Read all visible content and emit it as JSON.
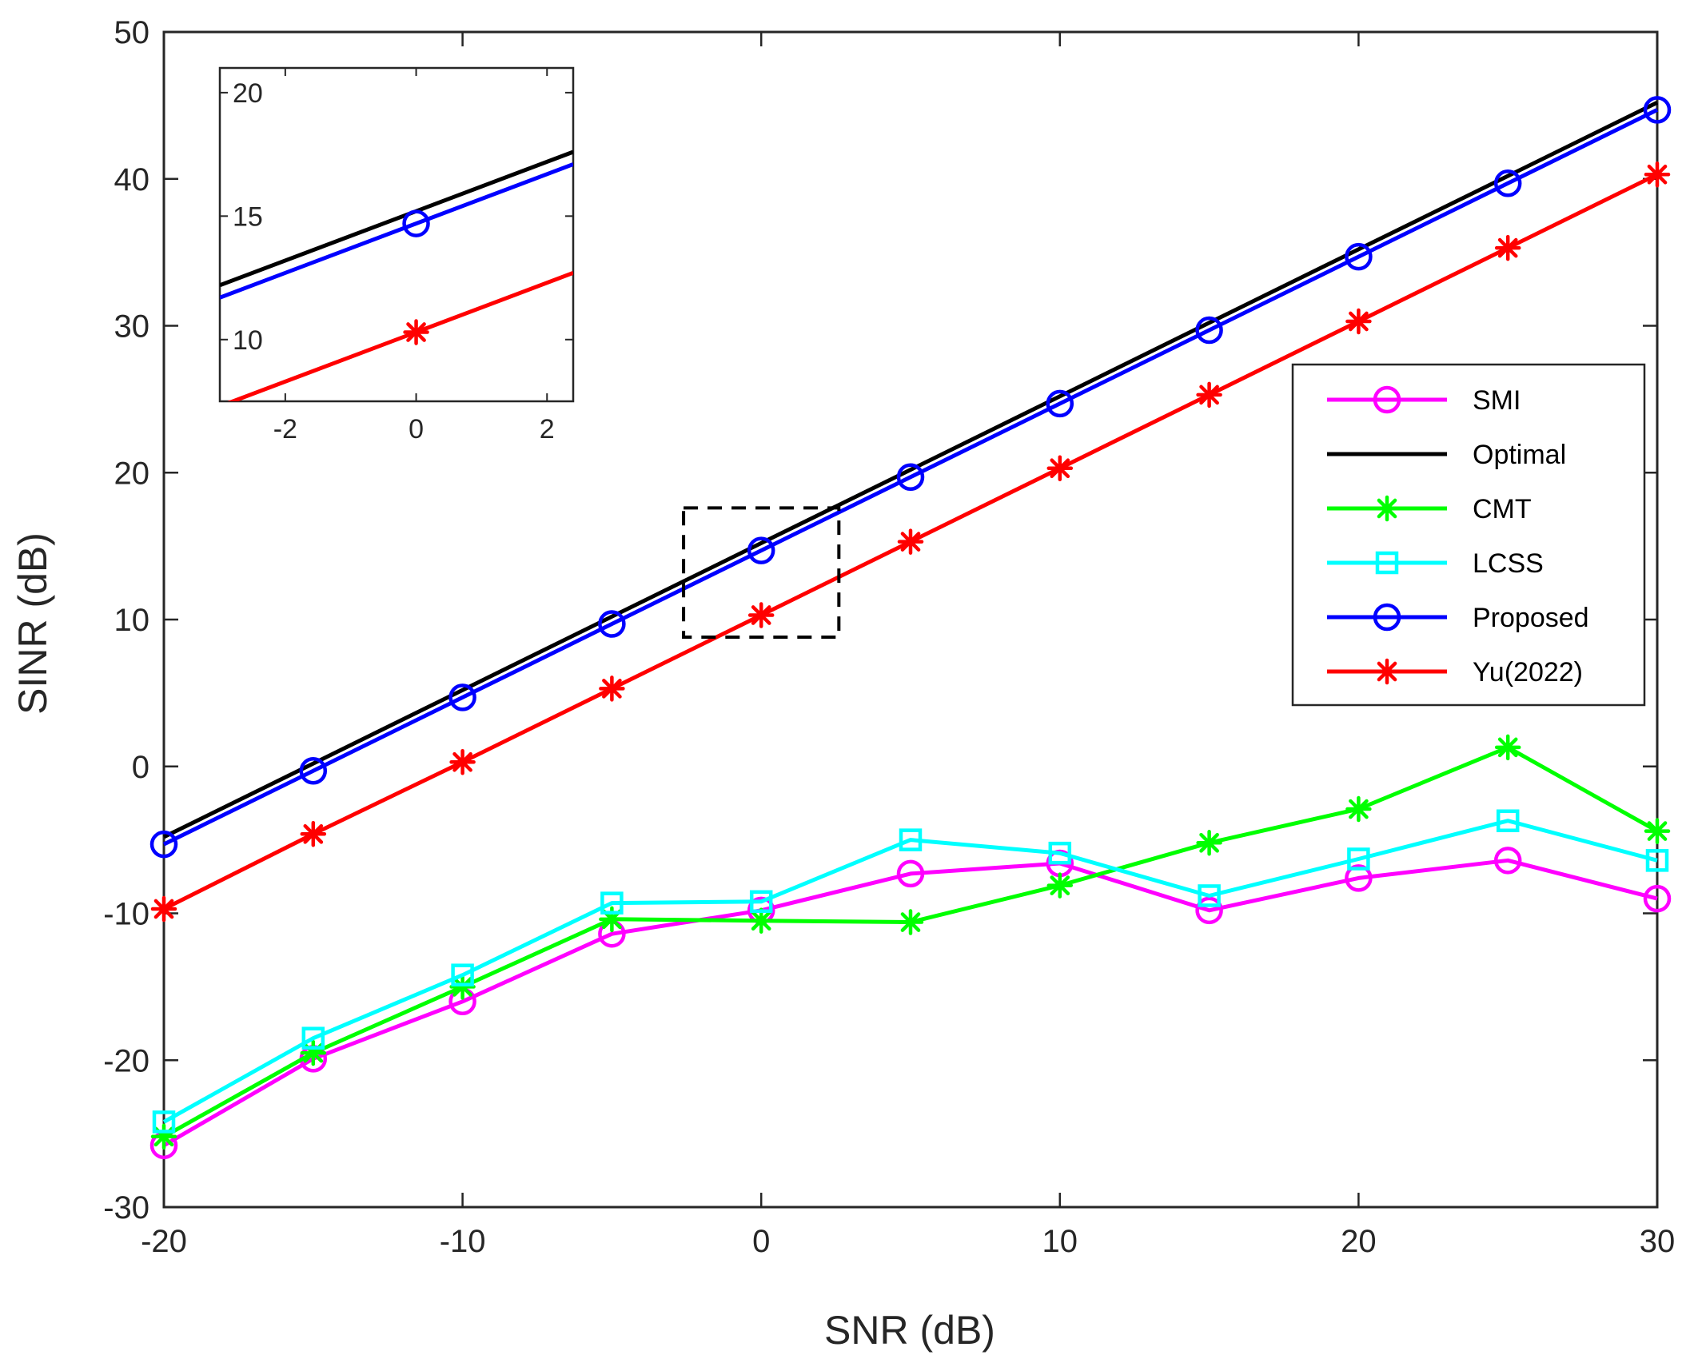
{
  "chart_data": {
    "type": "line",
    "title": "",
    "xlabel": "SNR (dB)",
    "ylabel": "SINR (dB)",
    "xlim": [
      -20,
      30
    ],
    "ylim": [
      -30,
      50
    ],
    "xticks": [
      -20,
      -10,
      0,
      10,
      20,
      30
    ],
    "yticks": [
      -30,
      -20,
      -10,
      0,
      10,
      20,
      30,
      40,
      50
    ],
    "xtick_labels": [
      "-20",
      "-10",
      "0",
      "10",
      "20",
      "30"
    ],
    "ytick_labels": [
      "-30",
      "-20",
      "-10",
      "0",
      "10",
      "20",
      "30",
      "40",
      "50"
    ],
    "grid": false,
    "legend_position": "right",
    "x": [
      -20,
      -15,
      -10,
      -5,
      0,
      5,
      10,
      15,
      20,
      25,
      30
    ],
    "series": [
      {
        "name": "SMI",
        "color": "#ff00ff",
        "marker": "circle",
        "values": [
          -25.8,
          -19.9,
          -16.0,
          -11.4,
          -9.8,
          -7.3,
          -6.6,
          -9.8,
          -7.6,
          -6.4,
          -9.0
        ]
      },
      {
        "name": "Optimal",
        "color": "#000000",
        "marker": "none",
        "values": [
          -4.8,
          0.2,
          5.2,
          10.2,
          15.2,
          20.2,
          25.2,
          30.2,
          35.2,
          40.2,
          45.2
        ]
      },
      {
        "name": "CMT",
        "color": "#00ff00",
        "marker": "asterisk",
        "values": [
          -25.2,
          -19.5,
          -15.0,
          -10.4,
          -10.5,
          -10.6,
          -8.1,
          -5.2,
          -2.9,
          1.3,
          -4.4
        ]
      },
      {
        "name": "LCSS",
        "color": "#00ffff",
        "marker": "square",
        "values": [
          -24.2,
          -18.5,
          -14.2,
          -9.3,
          -9.2,
          -5.0,
          -5.9,
          -8.8,
          -6.3,
          -3.7,
          -6.4
        ]
      },
      {
        "name": "Proposed",
        "color": "#0000ff",
        "marker": "circle",
        "values": [
          -5.3,
          -0.3,
          4.7,
          9.7,
          14.7,
          19.7,
          24.7,
          29.7,
          34.7,
          39.7,
          44.7
        ]
      },
      {
        "name": "Yu(2022)",
        "color": "#ff0000",
        "marker": "asterisk",
        "values": [
          -9.7,
          -4.6,
          0.3,
          5.3,
          10.3,
          15.3,
          20.3,
          25.3,
          30.3,
          35.3,
          40.3
        ]
      }
    ],
    "zoom_box": {
      "x_range": [
        -2.6,
        2.6
      ],
      "y_range": [
        8.8,
        17.6
      ]
    },
    "inset": {
      "xlim": [
        -3,
        2.4
      ],
      "ylim": [
        7.5,
        21
      ],
      "xticks": [
        -2,
        0,
        2
      ],
      "yticks": [
        10,
        15,
        20
      ],
      "xtick_labels": [
        "-2",
        "0",
        "2"
      ],
      "ytick_labels": [
        "10",
        "15",
        "20"
      ],
      "series_names": [
        "Optimal",
        "Proposed",
        "Yu(2022)"
      ]
    }
  }
}
